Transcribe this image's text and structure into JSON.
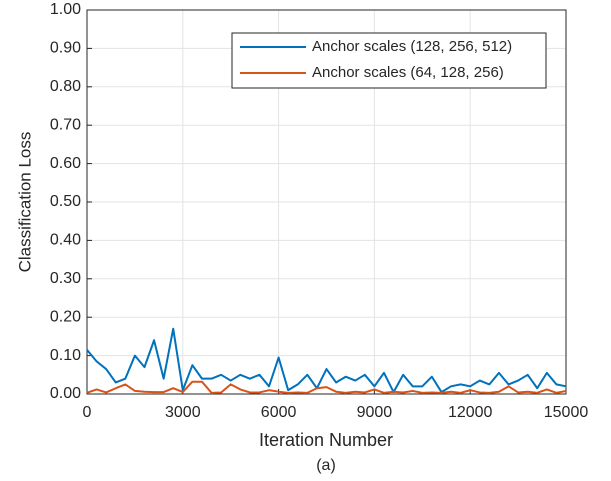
{
  "chart_data": {
    "type": "line",
    "x_label": "Iteration Number",
    "y_label": "Classification Loss",
    "caption": "(a)",
    "x": [
      0,
      300,
      600,
      900,
      1200,
      1500,
      1800,
      2100,
      2400,
      2700,
      3000,
      3300,
      3600,
      3900,
      4200,
      4500,
      4800,
      5100,
      5400,
      5700,
      6000,
      6300,
      6600,
      6900,
      7200,
      7500,
      7800,
      8100,
      8400,
      8700,
      9000,
      9300,
      9600,
      9900,
      10200,
      10500,
      10800,
      11100,
      11400,
      11700,
      12000,
      12300,
      12600,
      12900,
      13200,
      13500,
      13800,
      14100,
      14400,
      14700,
      15000
    ],
    "series": [
      {
        "name": "Anchor scales (128, 256, 512)",
        "color": "#0072bd",
        "values": [
          0.115,
          0.085,
          0.065,
          0.03,
          0.04,
          0.1,
          0.07,
          0.14,
          0.04,
          0.17,
          0.01,
          0.075,
          0.04,
          0.04,
          0.05,
          0.035,
          0.05,
          0.04,
          0.05,
          0.02,
          0.095,
          0.01,
          0.025,
          0.05,
          0.015,
          0.065,
          0.03,
          0.045,
          0.035,
          0.05,
          0.02,
          0.055,
          0.005,
          0.05,
          0.02,
          0.02,
          0.045,
          0.005,
          0.02,
          0.025,
          0.02,
          0.035,
          0.025,
          0.055,
          0.025,
          0.035,
          0.05,
          0.015,
          0.055,
          0.025,
          0.02
        ]
      },
      {
        "name": "Anchor scales (64, 128, 256)",
        "color": "#d95319",
        "values": [
          0.003,
          0.012,
          0.004,
          0.015,
          0.025,
          0.008,
          0.006,
          0.005,
          0.005,
          0.015,
          0.005,
          0.032,
          0.032,
          0.003,
          0.004,
          0.025,
          0.012,
          0.004,
          0.004,
          0.01,
          0.006,
          0.003,
          0.004,
          0.003,
          0.015,
          0.018,
          0.006,
          0.003,
          0.006,
          0.004,
          0.012,
          0.003,
          0.006,
          0.004,
          0.008,
          0.003,
          0.004,
          0.003,
          0.006,
          0.003,
          0.01,
          0.004,
          0.003,
          0.006,
          0.02,
          0.004,
          0.006,
          0.003,
          0.012,
          0.003,
          0.008
        ]
      }
    ],
    "xlim": [
      0,
      15000
    ],
    "xticks": [
      0,
      3000,
      6000,
      9000,
      12000,
      15000
    ],
    "ylim": [
      0,
      1
    ],
    "yticks": [
      {
        "value": 0,
        "label": "0.00"
      },
      {
        "value": 0.1,
        "label": "0.10"
      },
      {
        "value": 0.2,
        "label": "0.20"
      },
      {
        "value": 0.3,
        "label": "0.30"
      },
      {
        "value": 0.4,
        "label": "0.40"
      },
      {
        "value": 0.5,
        "label": "0.50"
      },
      {
        "value": 0.6,
        "label": "0.60"
      },
      {
        "value": 0.7,
        "label": "0.70"
      },
      {
        "value": 0.8,
        "label": "0.80"
      },
      {
        "value": 0.9,
        "label": "0.90"
      },
      {
        "value": 1,
        "label": "1.00"
      }
    ],
    "grid": true,
    "legend": "upper right"
  }
}
